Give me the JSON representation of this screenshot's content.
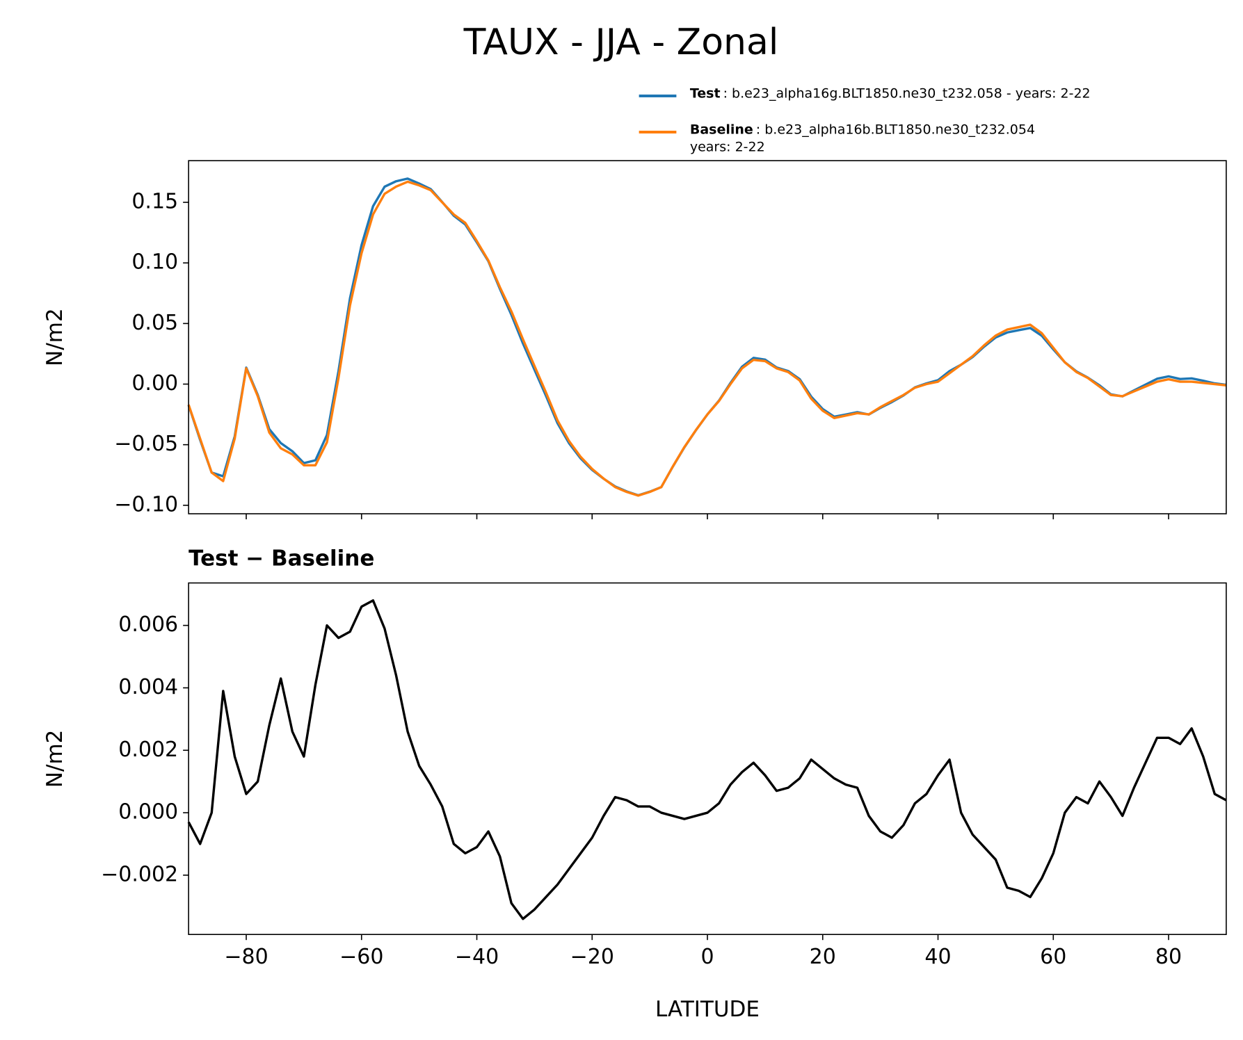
{
  "chart_data": [
    {
      "type": "line",
      "title": "TAUX - JJA - Zonal",
      "ylabel": "N/m2",
      "legend": "upper right",
      "x": [
        -90,
        -88,
        -86,
        -84,
        -82,
        -80,
        -78,
        -76,
        -74,
        -72,
        -70,
        -68,
        -66,
        -64,
        -62,
        -60,
        -58,
        -56,
        -54,
        -52,
        -50,
        -48,
        -46,
        -44,
        -42,
        -40,
        -38,
        -36,
        -34,
        -32,
        -30,
        -28,
        -26,
        -24,
        -22,
        -20,
        -18,
        -16,
        -14,
        -12,
        -10,
        -8,
        -6,
        -4,
        -2,
        0,
        2,
        4,
        6,
        8,
        10,
        12,
        14,
        16,
        18,
        20,
        22,
        24,
        26,
        28,
        30,
        32,
        34,
        36,
        38,
        40,
        42,
        44,
        46,
        48,
        50,
        52,
        54,
        56,
        58,
        60,
        62,
        64,
        66,
        68,
        70,
        72,
        74,
        76,
        78,
        80,
        82,
        84,
        86,
        88,
        90
      ],
      "series": [
        {
          "name": "Test",
          "description": [
            ": b.e23_alpha16g.BLT1850.ne30_t232.058 - years: 2-22"
          ],
          "color": "#1f77b4",
          "values": [
            -0.0173,
            -0.046,
            -0.073,
            -0.0761,
            -0.0432,
            0.0136,
            -0.009,
            -0.0372,
            -0.0487,
            -0.0554,
            -0.0652,
            -0.0629,
            -0.042,
            0.0106,
            0.0708,
            0.1146,
            0.1468,
            0.1629,
            0.1674,
            0.1696,
            0.1655,
            0.1609,
            0.1502,
            0.139,
            0.1317,
            0.1169,
            0.1014,
            0.0786,
            0.0571,
            0.0336,
            0.0119,
            -0.0097,
            -0.0323,
            -0.0488,
            -0.0613,
            -0.0708,
            -0.0781,
            -0.0845,
            -0.0886,
            -0.0918,
            -0.0888,
            -0.085,
            -0.0681,
            -0.0522,
            -0.0381,
            -0.025,
            -0.0137,
            0.0009,
            0.0143,
            0.0216,
            0.0202,
            0.0137,
            0.0108,
            0.0041,
            -0.0103,
            -0.0206,
            -0.0269,
            -0.0251,
            -0.0232,
            -0.0251,
            -0.0196,
            -0.0148,
            -0.0094,
            -0.0027,
            0.0006,
            0.0032,
            0.0107,
            0.016,
            0.0223,
            0.0309,
            0.0385,
            0.0426,
            0.0445,
            0.0463,
            0.0399,
            0.0287,
            0.018,
            0.0105,
            0.0053,
            -0.001,
            -0.0085,
            -0.0101,
            -0.0052,
            -0.0004,
            0.0044,
            0.0064,
            0.0042,
            0.0047,
            0.0028,
            0.0006,
            -0.0006
          ]
        },
        {
          "name": "Baseline",
          "description": [
            ": b.e23_alpha16b.BLT1850.ne30_t232.054",
            "years: 2-22"
          ],
          "color": "#ff7f0e",
          "values": [
            -0.017,
            -0.045,
            -0.073,
            -0.08,
            -0.045,
            0.013,
            -0.01,
            -0.04,
            -0.053,
            -0.058,
            -0.067,
            -0.067,
            -0.048,
            0.005,
            0.065,
            0.108,
            0.14,
            0.157,
            0.163,
            0.167,
            0.164,
            0.16,
            0.15,
            0.14,
            0.133,
            0.118,
            0.102,
            0.08,
            0.06,
            0.037,
            0.015,
            -0.007,
            -0.03,
            -0.047,
            -0.06,
            -0.07,
            -0.078,
            -0.085,
            -0.089,
            -0.092,
            -0.089,
            -0.085,
            -0.068,
            -0.052,
            -0.038,
            -0.025,
            -0.014,
            0.0,
            0.013,
            0.02,
            0.019,
            0.013,
            0.01,
            0.003,
            -0.012,
            -0.022,
            -0.028,
            -0.026,
            -0.024,
            -0.025,
            -0.019,
            -0.014,
            -0.009,
            -0.003,
            0.0,
            0.002,
            0.009,
            0.016,
            0.023,
            0.032,
            0.04,
            0.045,
            0.047,
            0.049,
            0.042,
            0.03,
            0.018,
            0.01,
            0.005,
            -0.002,
            -0.009,
            -0.01,
            -0.006,
            -0.002,
            0.002,
            0.004,
            0.002,
            0.002,
            0.001,
            0.0,
            -0.001
          ]
        }
      ],
      "xlim": [
        -90,
        90
      ],
      "xticks": [
        -80,
        -60,
        -40,
        -20,
        0,
        20,
        40,
        60,
        80
      ],
      "ylim": [
        -0.107,
        0.1844
      ],
      "yticks": [
        {
          "value": -0.1,
          "label": "−0.10"
        },
        {
          "value": -0.05,
          "label": "−0.05"
        },
        {
          "value": 0,
          "label": "0.00"
        },
        {
          "value": 0.05,
          "label": "0.05"
        },
        {
          "value": 0.1,
          "label": "0.10"
        },
        {
          "value": 0.15,
          "label": "0.15"
        }
      ]
    },
    {
      "type": "line",
      "title": "Test − Baseline",
      "xlabel": "LATITUDE",
      "ylabel": "N/m2",
      "x": [
        -90,
        -88,
        -86,
        -84,
        -82,
        -80,
        -78,
        -76,
        -74,
        -72,
        -70,
        -68,
        -66,
        -64,
        -62,
        -60,
        -58,
        -56,
        -54,
        -52,
        -50,
        -48,
        -46,
        -44,
        -42,
        -40,
        -38,
        -36,
        -34,
        -32,
        -30,
        -28,
        -26,
        -24,
        -22,
        -20,
        -18,
        -16,
        -14,
        -12,
        -10,
        -8,
        -6,
        -4,
        -2,
        0,
        2,
        4,
        6,
        8,
        10,
        12,
        14,
        16,
        18,
        20,
        22,
        24,
        26,
        28,
        30,
        32,
        34,
        36,
        38,
        40,
        42,
        44,
        46,
        48,
        50,
        52,
        54,
        56,
        58,
        60,
        62,
        64,
        66,
        68,
        70,
        72,
        74,
        76,
        78,
        80,
        82,
        84,
        86,
        88,
        90
      ],
      "series": [
        {
          "color": "#000000",
          "values": [
            -0.0003,
            -0.001,
            0.0,
            0.0039,
            0.0018,
            0.0006,
            0.001,
            0.0028,
            0.0043,
            0.0026,
            0.0018,
            0.0041,
            0.006,
            0.0056,
            0.0058,
            0.0066,
            0.0068,
            0.0059,
            0.0044,
            0.0026,
            0.0015,
            0.0009,
            0.0002,
            -0.001,
            -0.0013,
            -0.0011,
            -0.0006,
            -0.0014,
            -0.0029,
            -0.0034,
            -0.0031,
            -0.0027,
            -0.0023,
            -0.0018,
            -0.0013,
            -0.0008,
            -0.0001,
            0.0005,
            0.0004,
            0.0002,
            0.0002,
            0.0,
            -0.0001,
            -0.0002,
            -0.0001,
            0.0,
            0.0003,
            0.0009,
            0.0013,
            0.0016,
            0.0012,
            0.0007,
            0.0008,
            0.0011,
            0.0017,
            0.0014,
            0.0011,
            0.0009,
            0.0008,
            -0.0001,
            -0.0006,
            -0.0008,
            -0.0004,
            0.0003,
            0.0006,
            0.0012,
            0.0017,
            0.0,
            -0.0007,
            -0.0011,
            -0.0015,
            -0.0024,
            -0.0025,
            -0.0027,
            -0.0021,
            -0.0013,
            0.0,
            0.0005,
            0.0003,
            0.001,
            0.0005,
            -0.0001,
            0.0008,
            0.0016,
            0.0024,
            0.0024,
            0.0022,
            0.0027,
            0.0018,
            0.0006,
            0.0004
          ]
        }
      ],
      "xlim": [
        -90,
        90
      ],
      "xticks": [
        {
          "value": -80,
          "label": "−80"
        },
        {
          "value": -60,
          "label": "−60"
        },
        {
          "value": -40,
          "label": "−40"
        },
        {
          "value": -20,
          "label": "−20"
        },
        {
          "value": 0,
          "label": "0"
        },
        {
          "value": 20,
          "label": "20"
        },
        {
          "value": 40,
          "label": "40"
        },
        {
          "value": 60,
          "label": "60"
        },
        {
          "value": 80,
          "label": "80"
        }
      ],
      "ylim": [
        -0.0039,
        0.00736
      ],
      "yticks": [
        {
          "value": -0.002,
          "label": "−0.002"
        },
        {
          "value": 0,
          "label": "0.000"
        },
        {
          "value": 0.002,
          "label": "0.002"
        },
        {
          "value": 0.004,
          "label": "0.004"
        },
        {
          "value": 0.006,
          "label": "0.006"
        }
      ]
    }
  ]
}
